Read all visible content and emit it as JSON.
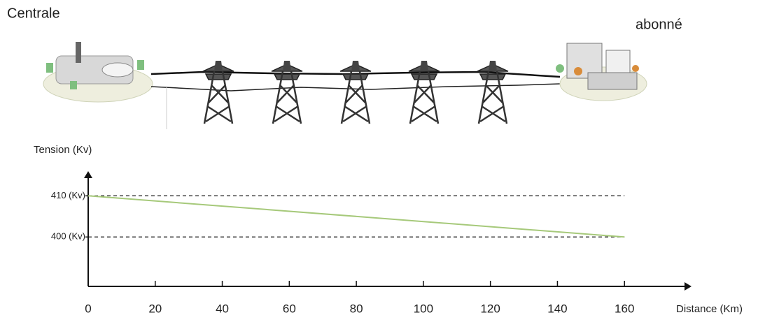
{
  "chart_data": {
    "type": "line",
    "annotations": [
      "Centrale",
      "abonné"
    ],
    "y_label": "Tension (Kv)",
    "x_label": "Distance (Km)",
    "x": [
      0,
      160
    ],
    "series": [
      {
        "color": "#a6c97a",
        "values": [
          410,
          400
        ]
      }
    ],
    "xlim": [
      0,
      180
    ],
    "xticks": [
      0,
      20,
      40,
      60,
      80,
      100,
      120,
      140,
      160
    ],
    "ylim": [
      388,
      416
    ],
    "yticks": [
      {
        "value": 400,
        "label": "400 (Kv)"
      },
      {
        "value": 410,
        "label": "410 (Kv)"
      }
    ],
    "grid": true
  }
}
